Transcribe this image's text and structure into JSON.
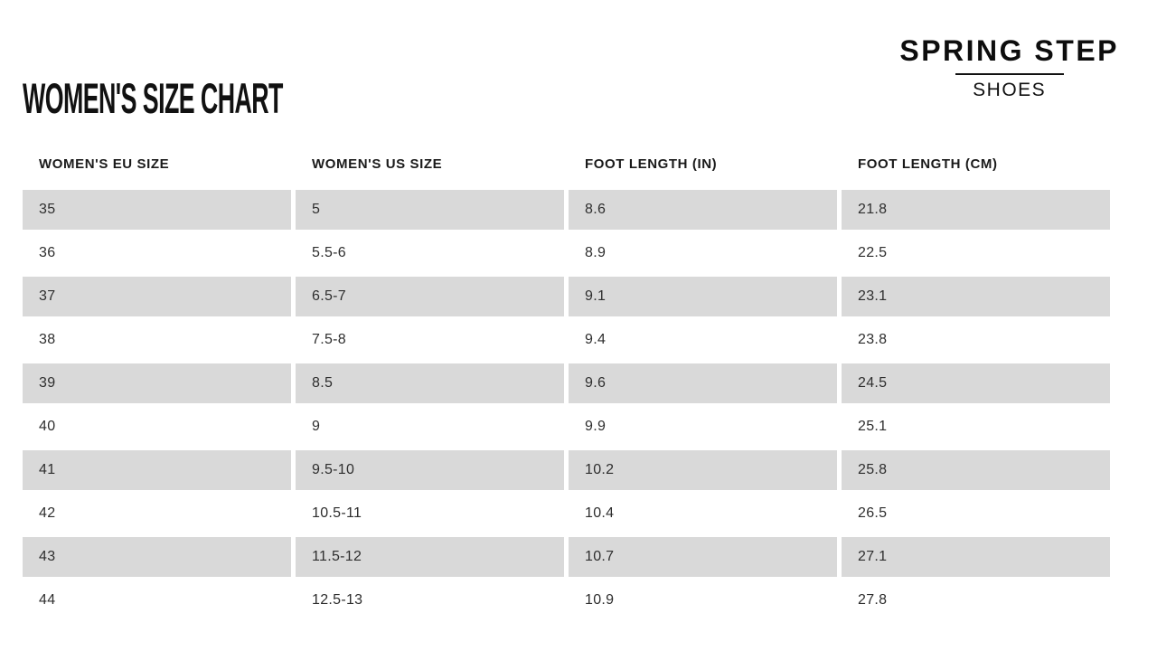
{
  "page_title": "WOMEN'S SIZE CHART",
  "logo": {
    "name": "SPRING STEP",
    "subtitle": "SHOES"
  },
  "chart_data": {
    "type": "table",
    "title": "WOMEN'S SIZE CHART",
    "columns": [
      "WOMEN'S EU SIZE",
      "WOMEN'S US SIZE",
      "FOOT LENGTH (IN)",
      "FOOT LENGTH (CM)"
    ],
    "rows": [
      [
        "35",
        "5",
        "8.6",
        "21.8"
      ],
      [
        "36",
        "5.5-6",
        "8.9",
        "22.5"
      ],
      [
        "37",
        "6.5-7",
        "9.1",
        "23.1"
      ],
      [
        "38",
        "7.5-8",
        "9.4",
        "23.8"
      ],
      [
        "39",
        "8.5",
        "9.6",
        "24.5"
      ],
      [
        "40",
        "9",
        "9.9",
        "25.1"
      ],
      [
        "41",
        "9.5-10",
        "10.2",
        "25.8"
      ],
      [
        "42",
        "10.5-11",
        "10.4",
        "26.5"
      ],
      [
        "43",
        "11.5-12",
        "10.7",
        "27.1"
      ],
      [
        "44",
        "12.5-13",
        "10.9",
        "27.8"
      ]
    ],
    "layout": {
      "stripe_pattern": "odd-rows-gray",
      "first_row_striped": true,
      "grid": "off",
      "legend": "none"
    }
  },
  "colors": {
    "background": "#ffffff",
    "stripe": "#d9d9d9",
    "heading_text": "#111111",
    "cell_text": "#2e2e2e"
  }
}
